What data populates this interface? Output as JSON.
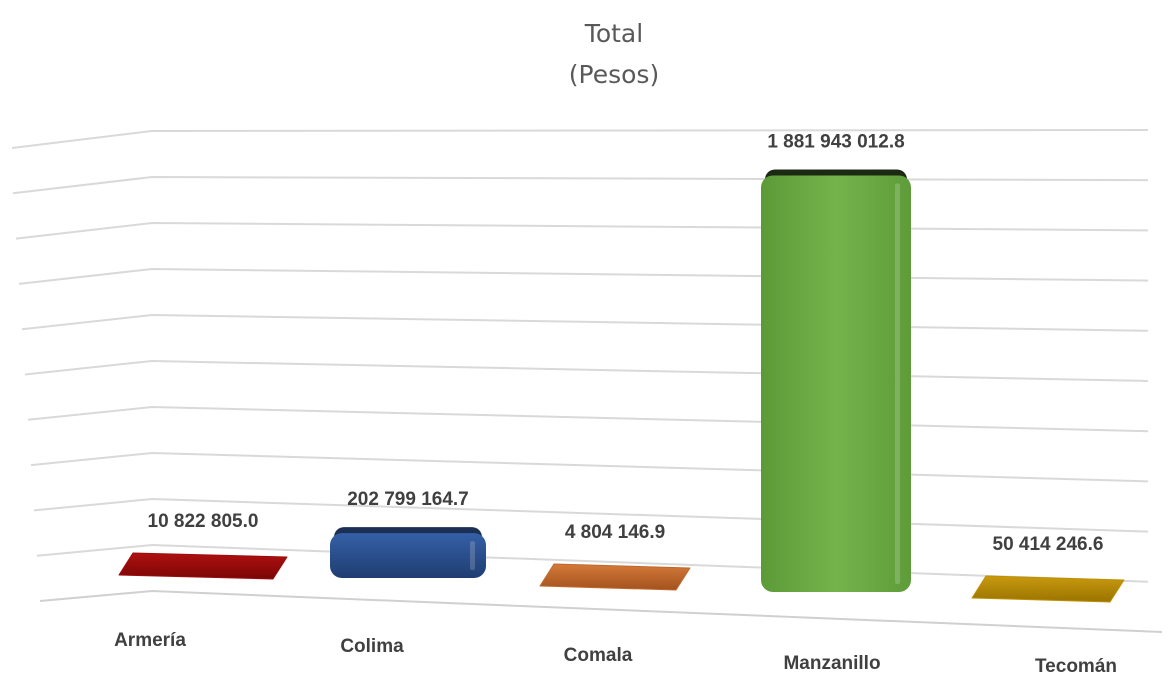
{
  "chart_data": {
    "type": "bar",
    "title": "Total",
    "subtitle": "(Pesos)",
    "categories": [
      "Armería",
      "Colima",
      "Comala",
      "Manzanillo",
      "Tecomán"
    ],
    "values": [
      10822805.0,
      202799164.7,
      4804146.9,
      1881943012.8,
      50414246.6
    ],
    "value_labels": [
      "10 822 805.0",
      "202 799 164.7",
      "4 804 146.9",
      "1 881 943 012.8",
      "50 414 246.6"
    ],
    "colors": [
      "#9b0d0d",
      "#2f5596",
      "#c0692d",
      "#70ad47",
      "#bf9000"
    ],
    "xlabel": "",
    "ylabel": "",
    "ylim": [
      0,
      2000000000
    ],
    "grid": true,
    "legend": "none",
    "style": "3d-perspective"
  }
}
